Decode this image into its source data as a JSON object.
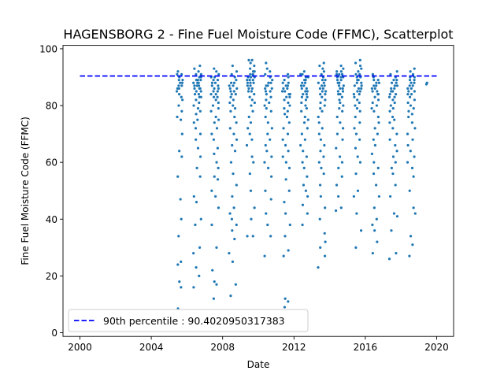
{
  "chart_data": {
    "type": "scatter",
    "title": "HAGENSBORG 2 - Fine Fuel Moisture Code (FFMC), Scatterplot",
    "xlabel": "Date",
    "ylabel": "Fine Fuel Moisture Code (FFMC)",
    "xlim": [
      1999.05,
      2020.95
    ],
    "ylim": [
      -1.3,
      101.2
    ],
    "xticks": [
      2000,
      2004,
      2008,
      2012,
      2016,
      2020
    ],
    "yticks": [
      0,
      20,
      40,
      60,
      80,
      100
    ],
    "grid": false,
    "legend_position": "lower-left",
    "reference_line": {
      "name": "90th percentile : 90.4020950317383",
      "value": 90.4020950317383,
      "x_range": [
        2000.0,
        2020.0
      ],
      "color": "#0000ff",
      "style": "dashed"
    },
    "series": [
      {
        "name": "",
        "color": "#1f77b4",
        "seasons": [
          {
            "start": 2005.42,
            "end": 2005.76,
            "values": [
              8.5,
              16,
              18,
              24,
              25,
              34,
              40,
              47,
              55,
              62,
              64,
              70,
              75,
              76,
              78,
              80,
              82,
              83,
              84,
              85,
              86,
              86,
              87,
              87,
              88,
              88,
              89,
              89,
              90,
              91,
              91,
              92
            ]
          },
          {
            "start": 2006.35,
            "end": 2006.8,
            "values": [
              16,
              20,
              23,
              28,
              30,
              38,
              40,
              46,
              48,
              55,
              58,
              62,
              65,
              68,
              70,
              72,
              74,
              75,
              77,
              78,
              79,
              80,
              81,
              82,
              83,
              83,
              84,
              84,
              85,
              85,
              86,
              86,
              86,
              87,
              87,
              87,
              88,
              88,
              88,
              89,
              89,
              89,
              90,
              90,
              91,
              91,
              92,
              93,
              94
            ]
          },
          {
            "start": 2007.35,
            "end": 2007.8,
            "values": [
              12,
              17,
              18,
              22,
              30,
              38,
              44,
              48,
              50,
              54,
              55,
              58,
              60,
              63,
              65,
              68,
              70,
              72,
              74,
              75,
              76,
              78,
              79,
              80,
              81,
              82,
              83,
              83,
              84,
              84,
              85,
              85,
              86,
              86,
              87,
              87,
              88,
              88,
              89,
              89,
              90,
              90,
              91,
              92,
              93
            ]
          },
          {
            "start": 2008.35,
            "end": 2008.8,
            "values": [
              13,
              17,
              25,
              28,
              33,
              36,
              38,
              40,
              42,
              44,
              48,
              52,
              56,
              60,
              64,
              66,
              68,
              70,
              72,
              74,
              76,
              78,
              79,
              80,
              81,
              82,
              83,
              84,
              84,
              85,
              85,
              86,
              86,
              87,
              87,
              88,
              88,
              89,
              90,
              91,
              92,
              94
            ]
          },
          {
            "start": 2009.35,
            "end": 2009.8,
            "values": [
              34,
              34,
              40,
              44,
              50,
              56,
              60,
              62,
              66,
              68,
              70,
              72,
              74,
              76,
              78,
              80,
              81,
              82,
              83,
              84,
              85,
              85,
              86,
              86,
              87,
              87,
              88,
              88,
              88,
              89,
              89,
              89,
              90,
              90,
              90,
              91,
              91,
              92,
              92,
              93,
              94,
              95,
              96,
              96
            ]
          },
          {
            "start": 2010.35,
            "end": 2010.8,
            "values": [
              27,
              34,
              38,
              42,
              47,
              50,
              55,
              58,
              60,
              62,
              64,
              66,
              68,
              70,
              72,
              74,
              76,
              78,
              79,
              80,
              81,
              82,
              83,
              84,
              85,
              85,
              86,
              86,
              87,
              87,
              88,
              88,
              89,
              90,
              91,
              92,
              93,
              95
            ]
          },
          {
            "start": 2011.35,
            "end": 2011.8,
            "values": [
              9,
              11,
              12,
              27,
              29,
              34,
              38,
              42,
              46,
              50,
              54,
              58,
              60,
              62,
              64,
              66,
              68,
              70,
              72,
              74,
              76,
              77,
              78,
              79,
              80,
              81,
              82,
              83,
              83,
              84,
              84,
              85,
              85,
              86,
              86,
              87,
              87,
              88,
              88,
              89,
              90,
              91
            ]
          },
          {
            "start": 2012.35,
            "end": 2012.8,
            "values": [
              38,
              42,
              45,
              48,
              50,
              52,
              55,
              58,
              60,
              62,
              64,
              66,
              68,
              70,
              72,
              74,
              75,
              76,
              78,
              79,
              80,
              81,
              82,
              83,
              83,
              84,
              84,
              85,
              85,
              86,
              86,
              87,
              87,
              88,
              88,
              89,
              89,
              90,
              90,
              91,
              91,
              92
            ]
          },
          {
            "start": 2013.35,
            "end": 2013.8,
            "values": [
              23,
              27,
              30,
              32,
              35,
              40,
              44,
              48,
              52,
              56,
              58,
              60,
              62,
              64,
              66,
              68,
              70,
              72,
              74,
              76,
              78,
              79,
              80,
              81,
              82,
              83,
              84,
              84,
              85,
              85,
              86,
              86,
              87,
              87,
              88,
              88,
              89,
              89,
              90,
              91,
              92,
              93,
              94,
              95
            ]
          },
          {
            "start": 2014.35,
            "end": 2014.8,
            "values": [
              43,
              44,
              48,
              52,
              55,
              58,
              60,
              62,
              65,
              68,
              70,
              72,
              74,
              76,
              78,
              79,
              80,
              81,
              82,
              83,
              84,
              84,
              85,
              85,
              86,
              86,
              87,
              87,
              88,
              88,
              89,
              89,
              90,
              90,
              90,
              91,
              91,
              91,
              92,
              92,
              93,
              94
            ]
          },
          {
            "start": 2015.35,
            "end": 2015.8,
            "values": [
              30,
              36,
              42,
              48,
              50,
              56,
              60,
              62,
              65,
              68,
              70,
              72,
              74,
              76,
              78,
              79,
              80,
              81,
              82,
              83,
              84,
              84,
              85,
              85,
              86,
              86,
              87,
              87,
              88,
              88,
              89,
              89,
              90,
              90,
              91,
              91,
              92,
              93,
              94,
              95,
              96
            ]
          },
          {
            "start": 2016.35,
            "end": 2016.8,
            "values": [
              28,
              32,
              36,
              38,
              40,
              44,
              48,
              52,
              56,
              58,
              60,
              63,
              66,
              68,
              70,
              72,
              74,
              76,
              78,
              79,
              80,
              81,
              82,
              83,
              84,
              84,
              85,
              85,
              86,
              86,
              87,
              87,
              88,
              88,
              89,
              89,
              90,
              91
            ]
          },
          {
            "start": 2017.35,
            "end": 2017.8,
            "values": [
              26,
              28,
              36,
              41,
              42,
              48,
              52,
              56,
              58,
              60,
              62,
              64,
              66,
              68,
              70,
              72,
              74,
              75,
              76,
              78,
              79,
              80,
              81,
              82,
              83,
              83,
              84,
              84,
              85,
              85,
              86,
              86,
              87,
              87,
              88,
              88,
              89,
              89,
              90,
              91,
              92
            ]
          },
          {
            "start": 2018.35,
            "end": 2018.8,
            "values": [
              27,
              31,
              34,
              42,
              44,
              50,
              55,
              58,
              60,
              62,
              64,
              66,
              68,
              70,
              72,
              74,
              76,
              77,
              78,
              79,
              80,
              81,
              82,
              83,
              84,
              84,
              85,
              85,
              86,
              86,
              87,
              87,
              88,
              88,
              89,
              89,
              90,
              90,
              91,
              92,
              93
            ]
          },
          {
            "start": 2019.4,
            "end": 2019.5,
            "values": [
              87.5,
              88
            ]
          }
        ]
      }
    ]
  }
}
